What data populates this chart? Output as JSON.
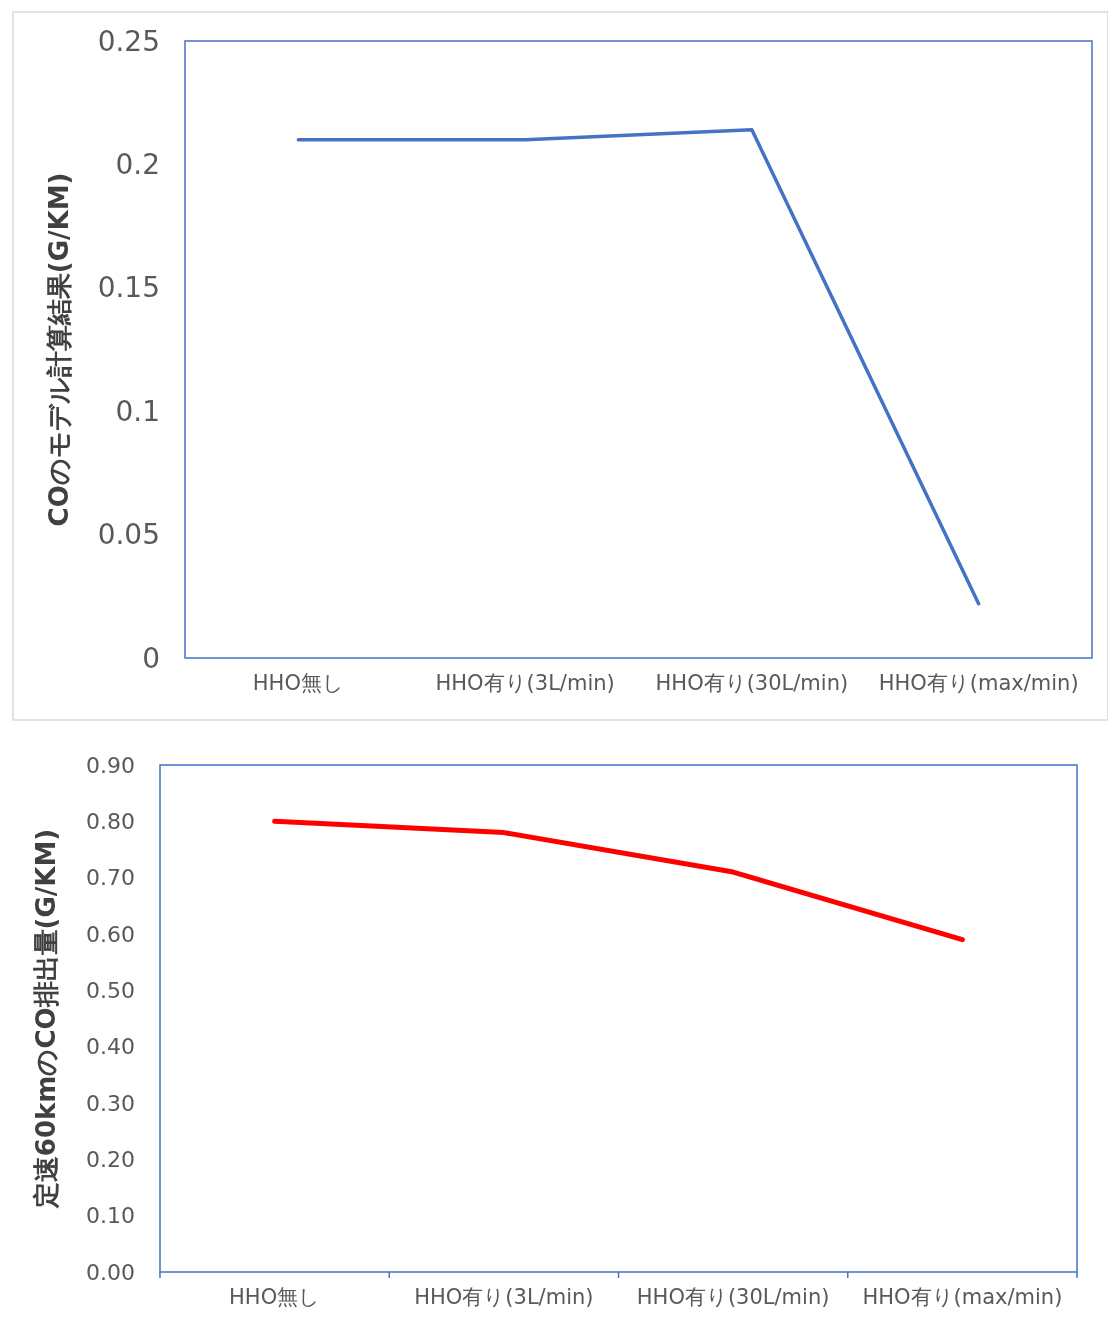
{
  "chart_data": [
    {
      "type": "line",
      "ylabel": "COのモデル計算結果(G/KM)",
      "categories": [
        "HHO無し",
        "HHO有り(3L/min)",
        "HHO有り(30L/min)",
        "HHO有り(max/min)"
      ],
      "series": [
        {
          "color": "#4472c4",
          "values": [
            0.21,
            0.21,
            0.214,
            0.022
          ]
        }
      ],
      "ylim": [
        0,
        0.25
      ],
      "yticks": [
        0,
        0.05,
        0.1,
        0.15,
        0.2,
        0.25
      ]
    },
    {
      "type": "line",
      "ylabel": "定速60kmのCO排出量(G/KM)",
      "categories": [
        "HHO無し",
        "HHO有り(3L/min)",
        "HHO有り(30L/min)",
        "HHO有り(max/min)"
      ],
      "series": [
        {
          "color": "#ff0000",
          "values": [
            0.8,
            0.78,
            0.71,
            0.59
          ]
        }
      ],
      "ylim": [
        0,
        0.9
      ],
      "yticks": [
        {
          "value": 0,
          "label": "0.00"
        },
        {
          "value": 0.1,
          "label": "0.10"
        },
        {
          "value": 0.2,
          "label": "0.20"
        },
        {
          "value": 0.3,
          "label": "0.30"
        },
        {
          "value": 0.4,
          "label": "0.40"
        },
        {
          "value": 0.5,
          "label": "0.50"
        },
        {
          "value": 0.6,
          "label": "0.60"
        },
        {
          "value": 0.7,
          "label": "0.70"
        },
        {
          "value": 0.8,
          "label": "0.80"
        },
        {
          "value": 0.9,
          "label": "0.90"
        }
      ]
    }
  ]
}
